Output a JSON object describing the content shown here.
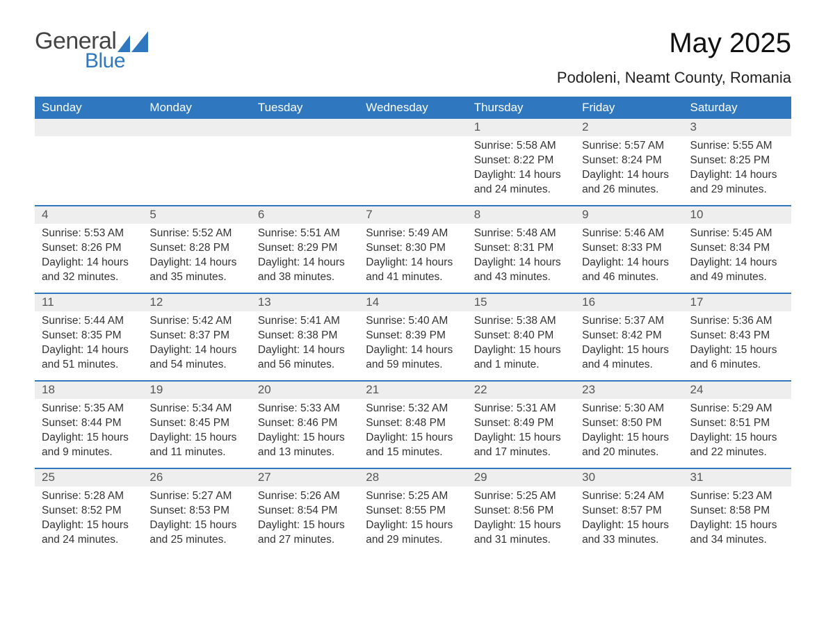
{
  "brand": {
    "text1": "General",
    "text2": "Blue",
    "accent_color": "#2f78bf"
  },
  "title": "May 2025",
  "location": "Podoleni, Neamt County, Romania",
  "day_headers": [
    "Sunday",
    "Monday",
    "Tuesday",
    "Wednesday",
    "Thursday",
    "Friday",
    "Saturday"
  ],
  "colors": {
    "header_bg": "#2f78bf",
    "header_text": "#ffffff",
    "daynum_bg": "#eeeeee",
    "week_border": "#2f78bf",
    "text": "#333333",
    "background": "#ffffff"
  },
  "weeks": [
    [
      {
        "n": "",
        "empty": true
      },
      {
        "n": "",
        "empty": true
      },
      {
        "n": "",
        "empty": true
      },
      {
        "n": "",
        "empty": true
      },
      {
        "n": "1",
        "sunrise": "Sunrise: 5:58 AM",
        "sunset": "Sunset: 8:22 PM",
        "daylight": "Daylight: 14 hours and 24 minutes."
      },
      {
        "n": "2",
        "sunrise": "Sunrise: 5:57 AM",
        "sunset": "Sunset: 8:24 PM",
        "daylight": "Daylight: 14 hours and 26 minutes."
      },
      {
        "n": "3",
        "sunrise": "Sunrise: 5:55 AM",
        "sunset": "Sunset: 8:25 PM",
        "daylight": "Daylight: 14 hours and 29 minutes."
      }
    ],
    [
      {
        "n": "4",
        "sunrise": "Sunrise: 5:53 AM",
        "sunset": "Sunset: 8:26 PM",
        "daylight": "Daylight: 14 hours and 32 minutes."
      },
      {
        "n": "5",
        "sunrise": "Sunrise: 5:52 AM",
        "sunset": "Sunset: 8:28 PM",
        "daylight": "Daylight: 14 hours and 35 minutes."
      },
      {
        "n": "6",
        "sunrise": "Sunrise: 5:51 AM",
        "sunset": "Sunset: 8:29 PM",
        "daylight": "Daylight: 14 hours and 38 minutes."
      },
      {
        "n": "7",
        "sunrise": "Sunrise: 5:49 AM",
        "sunset": "Sunset: 8:30 PM",
        "daylight": "Daylight: 14 hours and 41 minutes."
      },
      {
        "n": "8",
        "sunrise": "Sunrise: 5:48 AM",
        "sunset": "Sunset: 8:31 PM",
        "daylight": "Daylight: 14 hours and 43 minutes."
      },
      {
        "n": "9",
        "sunrise": "Sunrise: 5:46 AM",
        "sunset": "Sunset: 8:33 PM",
        "daylight": "Daylight: 14 hours and 46 minutes."
      },
      {
        "n": "10",
        "sunrise": "Sunrise: 5:45 AM",
        "sunset": "Sunset: 8:34 PM",
        "daylight": "Daylight: 14 hours and 49 minutes."
      }
    ],
    [
      {
        "n": "11",
        "sunrise": "Sunrise: 5:44 AM",
        "sunset": "Sunset: 8:35 PM",
        "daylight": "Daylight: 14 hours and 51 minutes."
      },
      {
        "n": "12",
        "sunrise": "Sunrise: 5:42 AM",
        "sunset": "Sunset: 8:37 PM",
        "daylight": "Daylight: 14 hours and 54 minutes."
      },
      {
        "n": "13",
        "sunrise": "Sunrise: 5:41 AM",
        "sunset": "Sunset: 8:38 PM",
        "daylight": "Daylight: 14 hours and 56 minutes."
      },
      {
        "n": "14",
        "sunrise": "Sunrise: 5:40 AM",
        "sunset": "Sunset: 8:39 PM",
        "daylight": "Daylight: 14 hours and 59 minutes."
      },
      {
        "n": "15",
        "sunrise": "Sunrise: 5:38 AM",
        "sunset": "Sunset: 8:40 PM",
        "daylight": "Daylight: 15 hours and 1 minute."
      },
      {
        "n": "16",
        "sunrise": "Sunrise: 5:37 AM",
        "sunset": "Sunset: 8:42 PM",
        "daylight": "Daylight: 15 hours and 4 minutes."
      },
      {
        "n": "17",
        "sunrise": "Sunrise: 5:36 AM",
        "sunset": "Sunset: 8:43 PM",
        "daylight": "Daylight: 15 hours and 6 minutes."
      }
    ],
    [
      {
        "n": "18",
        "sunrise": "Sunrise: 5:35 AM",
        "sunset": "Sunset: 8:44 PM",
        "daylight": "Daylight: 15 hours and 9 minutes."
      },
      {
        "n": "19",
        "sunrise": "Sunrise: 5:34 AM",
        "sunset": "Sunset: 8:45 PM",
        "daylight": "Daylight: 15 hours and 11 minutes."
      },
      {
        "n": "20",
        "sunrise": "Sunrise: 5:33 AM",
        "sunset": "Sunset: 8:46 PM",
        "daylight": "Daylight: 15 hours and 13 minutes."
      },
      {
        "n": "21",
        "sunrise": "Sunrise: 5:32 AM",
        "sunset": "Sunset: 8:48 PM",
        "daylight": "Daylight: 15 hours and 15 minutes."
      },
      {
        "n": "22",
        "sunrise": "Sunrise: 5:31 AM",
        "sunset": "Sunset: 8:49 PM",
        "daylight": "Daylight: 15 hours and 17 minutes."
      },
      {
        "n": "23",
        "sunrise": "Sunrise: 5:30 AM",
        "sunset": "Sunset: 8:50 PM",
        "daylight": "Daylight: 15 hours and 20 minutes."
      },
      {
        "n": "24",
        "sunrise": "Sunrise: 5:29 AM",
        "sunset": "Sunset: 8:51 PM",
        "daylight": "Daylight: 15 hours and 22 minutes."
      }
    ],
    [
      {
        "n": "25",
        "sunrise": "Sunrise: 5:28 AM",
        "sunset": "Sunset: 8:52 PM",
        "daylight": "Daylight: 15 hours and 24 minutes."
      },
      {
        "n": "26",
        "sunrise": "Sunrise: 5:27 AM",
        "sunset": "Sunset: 8:53 PM",
        "daylight": "Daylight: 15 hours and 25 minutes."
      },
      {
        "n": "27",
        "sunrise": "Sunrise: 5:26 AM",
        "sunset": "Sunset: 8:54 PM",
        "daylight": "Daylight: 15 hours and 27 minutes."
      },
      {
        "n": "28",
        "sunrise": "Sunrise: 5:25 AM",
        "sunset": "Sunset: 8:55 PM",
        "daylight": "Daylight: 15 hours and 29 minutes."
      },
      {
        "n": "29",
        "sunrise": "Sunrise: 5:25 AM",
        "sunset": "Sunset: 8:56 PM",
        "daylight": "Daylight: 15 hours and 31 minutes."
      },
      {
        "n": "30",
        "sunrise": "Sunrise: 5:24 AM",
        "sunset": "Sunset: 8:57 PM",
        "daylight": "Daylight: 15 hours and 33 minutes."
      },
      {
        "n": "31",
        "sunrise": "Sunrise: 5:23 AM",
        "sunset": "Sunset: 8:58 PM",
        "daylight": "Daylight: 15 hours and 34 minutes."
      }
    ]
  ]
}
